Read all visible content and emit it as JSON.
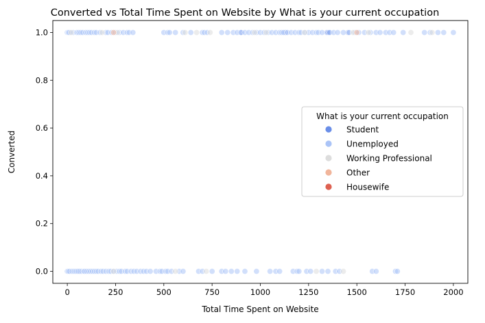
{
  "chart_data": {
    "type": "scatter",
    "title": "Converted vs Total Time Spent on Website by What is your current occupation",
    "xlabel": "Total Time Spent on Website",
    "ylabel": "Converted",
    "xlim": [
      -75,
      2075
    ],
    "ylim": [
      -0.05,
      1.05
    ],
    "xticks": [
      0,
      250,
      500,
      750,
      1000,
      1250,
      1500,
      1750,
      2000
    ],
    "xtick_labels": [
      "0",
      "250",
      "500",
      "750",
      "1000",
      "1250",
      "1500",
      "1750",
      "2000"
    ],
    "yticks": [
      0.0,
      0.2,
      0.4,
      0.6,
      0.8,
      1.0
    ],
    "ytick_labels": [
      "0.0",
      "0.2",
      "0.4",
      "0.6",
      "0.8",
      "1.0"
    ],
    "grid": false,
    "legend": {
      "title": "What is your current occupation",
      "placement": "center-right",
      "entries": [
        {
          "name": "Student",
          "color": "#6a8ee8"
        },
        {
          "name": "Unemployed",
          "color": "#abc4f7"
        },
        {
          "name": "Working Professional",
          "color": "#dddddd"
        },
        {
          "name": "Other",
          "color": "#f1b59b"
        },
        {
          "name": "Housewife",
          "color": "#de6151"
        }
      ]
    },
    "series": [
      {
        "name": "Student",
        "color": "#6a8ee8",
        "x": [
          1345,
          1130,
          1350,
          1355,
          60,
          900,
          1455
        ],
        "y": [
          1,
          1,
          1,
          1,
          0,
          1,
          1
        ]
      },
      {
        "name": "Unemployed",
        "color": "#abc4f7",
        "x": [
          0,
          5,
          10,
          30,
          50,
          60,
          70,
          80,
          95,
          105,
          115,
          125,
          140,
          150,
          170,
          200,
          210,
          230,
          250,
          270,
          290,
          310,
          320,
          340,
          500,
          520,
          530,
          560,
          600,
          640,
          700,
          710,
          725,
          800,
          830,
          860,
          880,
          900,
          920,
          940,
          960,
          980,
          1000,
          1020,
          1040,
          1060,
          1080,
          1100,
          1110,
          1120,
          1140,
          1160,
          1180,
          1200,
          1210,
          1230,
          1250,
          1270,
          1290,
          1300,
          1320,
          1360,
          1380,
          1400,
          1430,
          1460,
          1490,
          1510,
          1540,
          1570,
          1600,
          1620,
          1650,
          1670,
          1690,
          1740,
          1850,
          1880,
          1920,
          1950,
          2000,
          0,
          5,
          12,
          25,
          35,
          45,
          55,
          65,
          75,
          85,
          90,
          100,
          110,
          120,
          130,
          140,
          150,
          160,
          175,
          185,
          200,
          215,
          225,
          240,
          255,
          270,
          280,
          300,
          310,
          330,
          345,
          360,
          380,
          395,
          410,
          430,
          460,
          480,
          490,
          510,
          520,
          540,
          580,
          600,
          680,
          700,
          750,
          800,
          820,
          850,
          880,
          920,
          980,
          1050,
          1080,
          1100,
          1170,
          1190,
          1200,
          1240,
          1260,
          1320,
          1350,
          1390,
          1410,
          1580,
          1600,
          1700,
          1710
        ],
        "y": [
          1,
          1,
          1,
          1,
          1,
          1,
          1,
          1,
          1,
          1,
          1,
          1,
          1,
          1,
          1,
          1,
          1,
          1,
          1,
          1,
          1,
          1,
          1,
          1,
          1,
          1,
          1,
          1,
          1,
          1,
          1,
          1,
          1,
          1,
          1,
          1,
          1,
          1,
          1,
          1,
          1,
          1,
          1,
          1,
          1,
          1,
          1,
          1,
          1,
          1,
          1,
          1,
          1,
          1,
          1,
          1,
          1,
          1,
          1,
          1,
          1,
          1,
          1,
          1,
          1,
          1,
          1,
          1,
          1,
          1,
          1,
          1,
          1,
          1,
          1,
          1,
          1,
          1,
          1,
          1,
          1,
          0,
          0,
          0,
          0,
          0,
          0,
          0,
          0,
          0,
          0,
          0,
          0,
          0,
          0,
          0,
          0,
          0,
          0,
          0,
          0,
          0,
          0,
          0,
          0,
          0,
          0,
          0,
          0,
          0,
          0,
          0,
          0,
          0,
          0,
          0,
          0,
          0,
          0,
          0,
          0,
          0,
          0,
          0,
          0,
          0,
          0,
          0,
          0,
          0,
          0,
          0,
          0,
          0,
          0,
          0,
          0,
          0,
          0,
          0,
          0,
          0,
          0,
          0,
          0,
          0,
          0,
          0,
          0,
          0
        ]
      },
      {
        "name": "Working Professional",
        "color": "#dddddd",
        "x": [
          20,
          180,
          260,
          610,
          670,
          740,
          970,
          1030,
          1230,
          1480,
          1560,
          1780,
          1890,
          240,
          560,
          720,
          1290,
          1430
        ],
        "y": [
          1,
          1,
          1,
          1,
          1,
          1,
          1,
          1,
          1,
          1,
          1,
          1,
          1,
          0,
          0,
          0,
          0,
          0
        ]
      },
      {
        "name": "Other",
        "color": "#f1b59b",
        "x": [
          240,
          1500
        ],
        "y": [
          1,
          1
        ]
      }
    ]
  }
}
